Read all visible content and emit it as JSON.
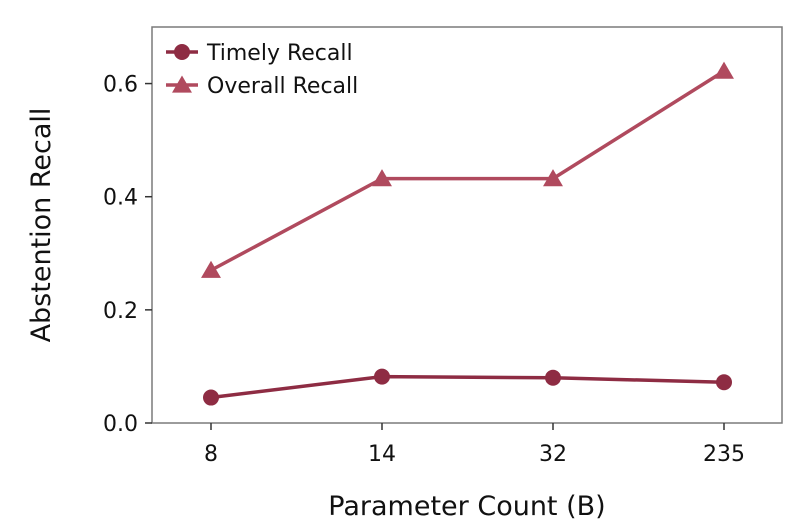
{
  "chart_data": {
    "type": "line",
    "categories": [
      "8",
      "14",
      "32",
      "235"
    ],
    "xlabel": "Parameter Count (B)",
    "ylabel": "Abstention Recall",
    "ylim": [
      0,
      0.7
    ],
    "yticks": [
      0.0,
      0.2,
      0.4,
      0.6
    ],
    "ytick_labels": [
      "0.0",
      "0.2",
      "0.4",
      "0.6"
    ],
    "grid": false,
    "legend_position": "top-left",
    "series": [
      {
        "name": "Timely Recall",
        "marker": "circle",
        "color": "#8e2c43",
        "values": [
          0.045,
          0.082,
          0.08,
          0.072
        ]
      },
      {
        "name": "Overall Recall",
        "marker": "triangle",
        "color": "#b04a5e",
        "values": [
          0.27,
          0.432,
          0.432,
          0.622
        ]
      }
    ]
  }
}
